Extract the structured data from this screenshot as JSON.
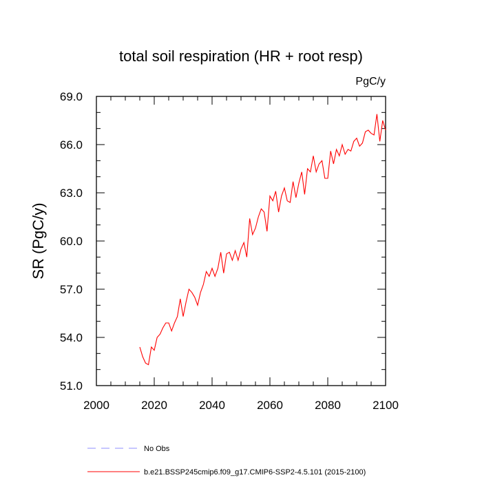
{
  "chart_data": {
    "type": "line",
    "title": "total soil respiration (HR + root resp)",
    "units_label": "PgC/y",
    "ylabel": "SR  (PgC/y)",
    "xlabel": "",
    "xlim": [
      2000,
      2100
    ],
    "ylim": [
      51.0,
      69.0
    ],
    "x_ticks": [
      2000,
      2020,
      2040,
      2060,
      2080,
      2100
    ],
    "y_ticks": [
      51.0,
      54.0,
      57.0,
      60.0,
      63.0,
      66.0,
      69.0
    ],
    "legend_position": "bottom",
    "series": [
      {
        "name": "No Obs",
        "color": "#8c8cff",
        "dash": "dashed",
        "x": [],
        "y": []
      },
      {
        "name": "b.e21.BSSP245cmip6.f09_g17.CMIP6-SSP2-4.5.101 (2015-2100)",
        "color": "#ff0000",
        "dash": "solid",
        "x": [
          2015,
          2016,
          2017,
          2018,
          2019,
          2020,
          2021,
          2022,
          2023,
          2024,
          2025,
          2026,
          2027,
          2028,
          2029,
          2030,
          2031,
          2032,
          2033,
          2034,
          2035,
          2036,
          2037,
          2038,
          2039,
          2040,
          2041,
          2042,
          2043,
          2044,
          2045,
          2046,
          2047,
          2048,
          2049,
          2050,
          2051,
          2052,
          2053,
          2054,
          2055,
          2056,
          2057,
          2058,
          2059,
          2060,
          2061,
          2062,
          2063,
          2064,
          2065,
          2066,
          2067,
          2068,
          2069,
          2070,
          2071,
          2072,
          2073,
          2074,
          2075,
          2076,
          2077,
          2078,
          2079,
          2080,
          2081,
          2082,
          2083,
          2084,
          2085,
          2086,
          2087,
          2088,
          2089,
          2090,
          2091,
          2092,
          2093,
          2094,
          2095,
          2096,
          2097,
          2098,
          2099,
          2100
        ],
        "y": [
          53.4,
          52.8,
          52.4,
          52.3,
          53.4,
          53.2,
          54.0,
          54.2,
          54.6,
          54.9,
          54.9,
          54.4,
          54.9,
          55.3,
          56.4,
          55.3,
          56.2,
          57.0,
          56.8,
          56.5,
          56.0,
          56.8,
          57.3,
          58.1,
          57.8,
          58.3,
          57.8,
          58.3,
          59.3,
          58.0,
          59.2,
          59.3,
          58.8,
          59.4,
          58.8,
          59.5,
          59.9,
          59.0,
          61.4,
          60.4,
          60.8,
          61.5,
          62.0,
          61.8,
          60.6,
          62.8,
          62.5,
          63.1,
          61.8,
          62.8,
          63.3,
          62.5,
          62.4,
          63.7,
          62.7,
          63.6,
          64.3,
          62.9,
          64.5,
          64.3,
          65.3,
          64.3,
          64.8,
          65.0,
          63.9,
          63.9,
          65.6,
          64.8,
          65.7,
          65.3,
          66.0,
          65.4,
          65.7,
          65.6,
          66.2,
          66.4,
          65.9,
          66.1,
          66.8,
          66.9,
          66.7,
          66.6,
          67.9,
          66.2,
          67.5,
          66.9
        ]
      }
    ]
  }
}
